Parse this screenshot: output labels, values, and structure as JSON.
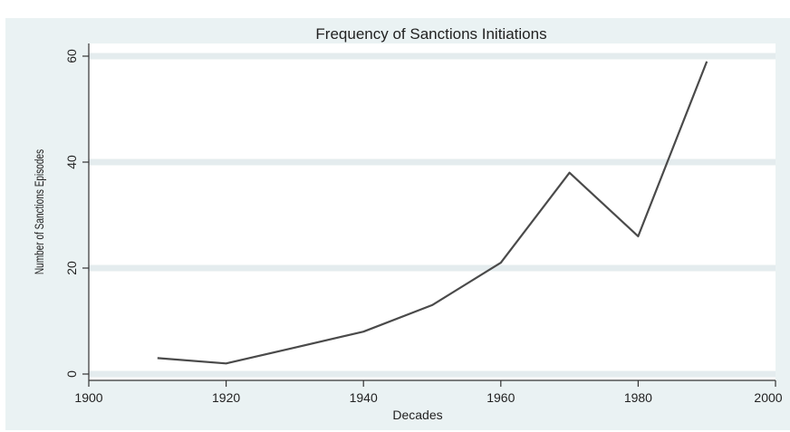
{
  "caption": "",
  "chart_data": {
    "type": "line",
    "title": "Frequency of Sanctions Initiations",
    "xlabel": "Decades",
    "ylabel": "Number of Sanctions Episodes",
    "x": [
      1910,
      1920,
      1930,
      1940,
      1950,
      1960,
      1970,
      1980,
      1990
    ],
    "series": [
      {
        "values": [
          3,
          2,
          5,
          8,
          13,
          21,
          38,
          26,
          59
        ]
      }
    ],
    "xlim": [
      1900,
      2000
    ],
    "ylim": [
      0,
      60
    ],
    "xticks": [
      "1900",
      "1920",
      "1940",
      "1960",
      "1980",
      "2000"
    ],
    "yticks": [
      "0",
      "20",
      "40",
      "60"
    ],
    "grid": "horizontal",
    "colors": {
      "line": "#4a4a4a",
      "background": "#eaf2f3",
      "plot_area": "#ffffff",
      "grid": "#e4ecee"
    }
  }
}
